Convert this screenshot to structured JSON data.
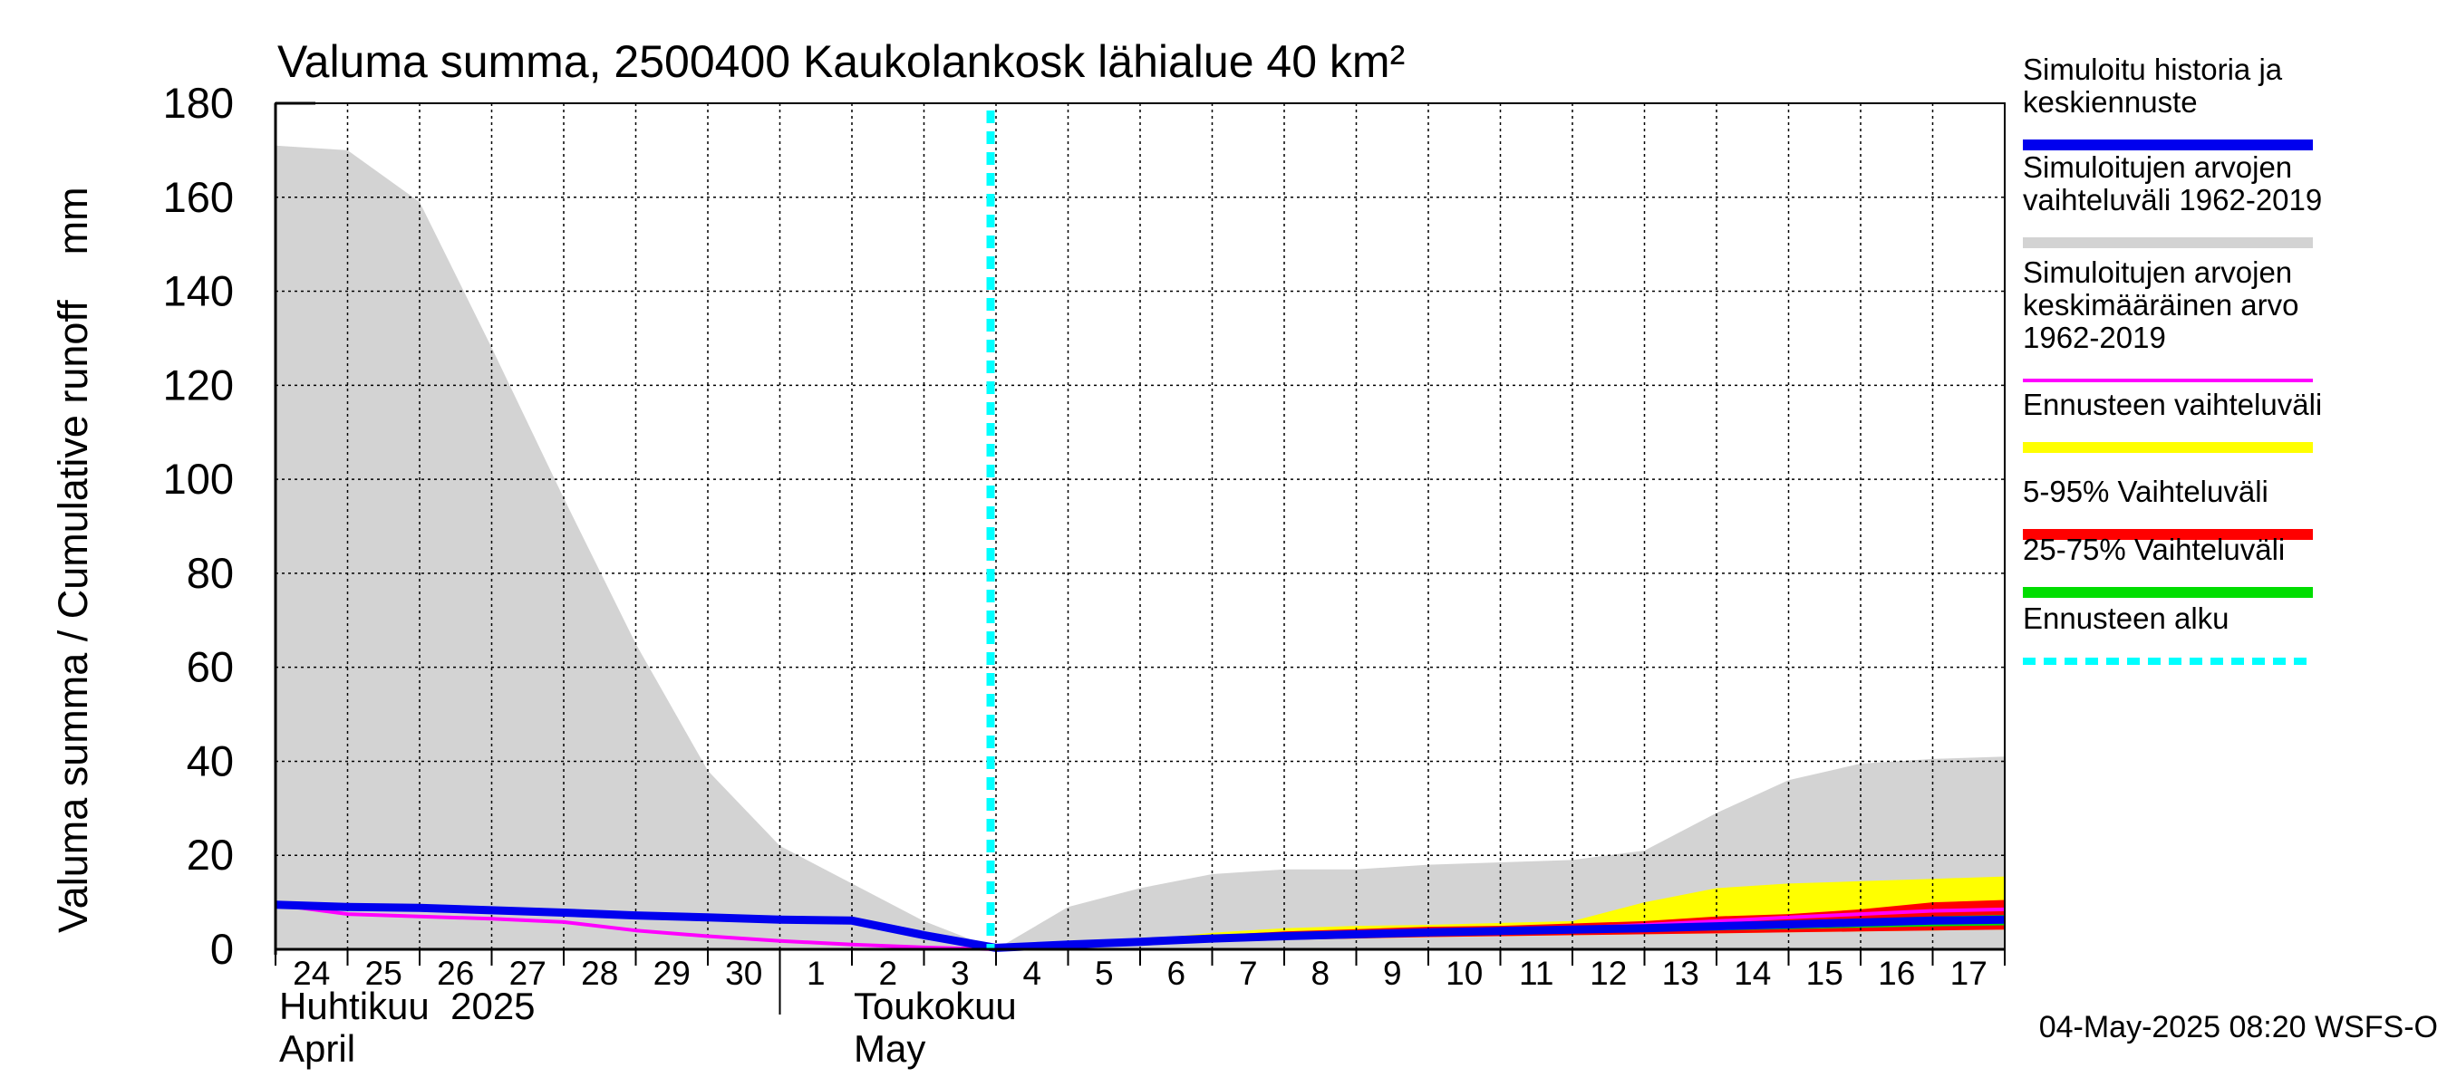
{
  "chart_data": {
    "type": "area",
    "title": "Valuma summa, 2500400 Kaukolankosk lähialue 40 km²",
    "ylabel": "Valuma summa / Cumulative runoff    mm",
    "ylim": [
      0,
      180
    ],
    "yticks": [
      0,
      20,
      40,
      60,
      80,
      100,
      120,
      140,
      160,
      180
    ],
    "grid": true,
    "legend_position": "right",
    "x_start": "2025-04-24",
    "x_end": "2025-05-17",
    "x_tick_labels": [
      "24",
      "25",
      "26",
      "27",
      "28",
      "29",
      "30",
      "1",
      "2",
      "3",
      "4",
      "5",
      "6",
      "7",
      "8",
      "9",
      "10",
      "11",
      "12",
      "13",
      "14",
      "15",
      "16",
      "17"
    ],
    "month_labels": [
      {
        "fi": "Huhtikuu  2025",
        "en": "April"
      },
      {
        "fi": "Toukokuu",
        "en": "May"
      }
    ],
    "forecast_start": "2025-05-04",
    "footer": "04-May-2025 08:20 WSFS-O",
    "series": [
      {
        "name": "Simuloitujen arvojen vaihteluväli 1962-2019",
        "color": "#d3d3d3",
        "kind": "band",
        "x": [
          "2025-04-24",
          "2025-04-25",
          "2025-04-26",
          "2025-04-27",
          "2025-04-28",
          "2025-04-29",
          "2025-04-30",
          "2025-05-01",
          "2025-05-02",
          "2025-05-03",
          "2025-05-04",
          "2025-05-05",
          "2025-05-06",
          "2025-05-07",
          "2025-05-08",
          "2025-05-09",
          "2025-05-10",
          "2025-05-11",
          "2025-05-12",
          "2025-05-13",
          "2025-05-14",
          "2025-05-15",
          "2025-05-16",
          "2025-05-17",
          "2025-05-18"
        ],
        "upper": [
          171,
          170,
          159,
          128,
          96,
          65,
          38,
          22,
          14,
          6,
          0,
          9,
          13,
          16,
          17,
          17,
          18,
          18.5,
          19,
          21,
          29,
          36,
          39.5,
          40.5,
          41
        ],
        "lower": [
          0,
          0,
          0,
          0,
          0,
          0,
          0,
          0,
          0,
          0,
          0,
          0,
          0,
          0,
          0,
          0,
          0,
          0,
          0,
          0,
          0,
          0,
          0,
          0,
          0
        ]
      },
      {
        "name": "Ennusteen vaihteluväli",
        "color": "#ffff00",
        "kind": "band",
        "x": [
          "2025-05-04",
          "2025-05-05",
          "2025-05-06",
          "2025-05-07",
          "2025-05-08",
          "2025-05-09",
          "2025-05-10",
          "2025-05-11",
          "2025-05-12",
          "2025-05-13",
          "2025-05-14",
          "2025-05-15",
          "2025-05-16",
          "2025-05-17",
          "2025-05-18"
        ],
        "upper": [
          0.5,
          1.5,
          2,
          3.5,
          4.5,
          5,
          5.2,
          5.6,
          6,
          10,
          13,
          14,
          14.5,
          15,
          15.5
        ],
        "lower": [
          0,
          0.5,
          1,
          1.5,
          2,
          2.3,
          2.6,
          2.8,
          3,
          3.2,
          3.4,
          3.6,
          3.8,
          4,
          4.2
        ]
      },
      {
        "name": "5-95% Vaihteluväli",
        "color": "#ff0000",
        "kind": "band",
        "x": [
          "2025-05-04",
          "2025-05-05",
          "2025-05-06",
          "2025-05-07",
          "2025-05-08",
          "2025-05-09",
          "2025-05-10",
          "2025-05-11",
          "2025-05-12",
          "2025-05-13",
          "2025-05-14",
          "2025-05-15",
          "2025-05-16",
          "2025-05-17",
          "2025-05-18"
        ],
        "upper": [
          0.5,
          1.5,
          2,
          3,
          3.8,
          4.3,
          4.8,
          5,
          5.5,
          6,
          7,
          7.5,
          8.5,
          10,
          10.5
        ],
        "lower": [
          0,
          0.5,
          1,
          1.5,
          2,
          2.3,
          2.6,
          2.8,
          3,
          3.2,
          3.4,
          3.6,
          3.8,
          4,
          4.2
        ]
      },
      {
        "name": "25-75% Vaihteluväli",
        "color": "#00dd00",
        "kind": "band",
        "x": [
          "2025-05-04",
          "2025-05-05",
          "2025-05-06",
          "2025-05-07",
          "2025-05-08",
          "2025-05-09",
          "2025-05-10",
          "2025-05-11",
          "2025-05-12",
          "2025-05-13",
          "2025-05-14",
          "2025-05-15",
          "2025-05-16",
          "2025-05-17",
          "2025-05-18"
        ],
        "upper": [
          0.4,
          1.3,
          1.8,
          2.6,
          3.2,
          3.6,
          4,
          4.3,
          4.6,
          5,
          5.5,
          6,
          6.5,
          7,
          7.3
        ],
        "lower": [
          0.2,
          0.9,
          1.4,
          2,
          2.5,
          2.8,
          3.1,
          3.3,
          3.6,
          3.8,
          4,
          4.3,
          4.6,
          4.9,
          5.1
        ]
      },
      {
        "name": "Simuloitujen arvojen keskimääräinen arvo 1962-2019",
        "color": "#ff00ff",
        "kind": "line",
        "x": [
          "2025-04-24",
          "2025-04-25",
          "2025-04-26",
          "2025-04-27",
          "2025-04-28",
          "2025-04-29",
          "2025-04-30",
          "2025-05-01",
          "2025-05-02",
          "2025-05-03",
          "2025-05-04",
          "2025-05-05",
          "2025-05-06",
          "2025-05-07",
          "2025-05-08",
          "2025-05-09",
          "2025-05-10",
          "2025-05-11",
          "2025-05-12",
          "2025-05-13",
          "2025-05-14",
          "2025-05-15",
          "2025-05-16",
          "2025-05-17",
          "2025-05-18"
        ],
        "values": [
          9.5,
          7.5,
          7,
          6.5,
          5.8,
          4,
          2.8,
          1.8,
          1,
          0.4,
          0,
          0.8,
          1.3,
          2,
          2.5,
          3,
          3.5,
          4,
          4.5,
          5.2,
          6,
          6.8,
          7.5,
          8.2,
          8.5
        ]
      },
      {
        "name": "Simuloitu historia ja keskiennuste",
        "color": "#0000ee",
        "kind": "line",
        "x": [
          "2025-04-24",
          "2025-04-25",
          "2025-04-26",
          "2025-04-27",
          "2025-04-28",
          "2025-04-29",
          "2025-04-30",
          "2025-05-01",
          "2025-05-02",
          "2025-05-03",
          "2025-05-04",
          "2025-05-05",
          "2025-05-06",
          "2025-05-07",
          "2025-05-08",
          "2025-05-09",
          "2025-05-10",
          "2025-05-11",
          "2025-05-12",
          "2025-05-13",
          "2025-05-14",
          "2025-05-15",
          "2025-05-16",
          "2025-05-17",
          "2025-05-18"
        ],
        "values": [
          9.5,
          9,
          8.8,
          8.3,
          7.8,
          7.2,
          6.8,
          6.3,
          6.1,
          3,
          0.3,
          1,
          1.6,
          2.3,
          2.8,
          3.2,
          3.6,
          3.9,
          4.2,
          4.5,
          4.9,
          5.3,
          5.7,
          6.1,
          6.3
        ]
      }
    ],
    "legend": [
      {
        "lines": [
          "Simuloitu historia ja",
          "keskiennuste"
        ],
        "color": "#0000ee",
        "style": "solid"
      },
      {
        "lines": [
          "Simuloitujen arvojen",
          "vaihteluväli 1962-2019"
        ],
        "color": "#d3d3d3",
        "style": "solid"
      },
      {
        "lines": [
          "Simuloitujen arvojen",
          "keskimääräinen arvo",
          "   1962-2019"
        ],
        "color": "#ff00ff",
        "style": "thin"
      },
      {
        "lines": [
          "Ennusteen vaihteluväli"
        ],
        "color": "#ffff00",
        "style": "solid"
      },
      {
        "lines": [
          "5-95% Vaihteluväli"
        ],
        "color": "#ff0000",
        "style": "solid"
      },
      {
        "lines": [
          "25-75% Vaihteluväli"
        ],
        "color": "#00dd00",
        "style": "solid"
      },
      {
        "lines": [
          "Ennusteen alku"
        ],
        "color": "#00ffff",
        "style": "dashed"
      }
    ]
  }
}
